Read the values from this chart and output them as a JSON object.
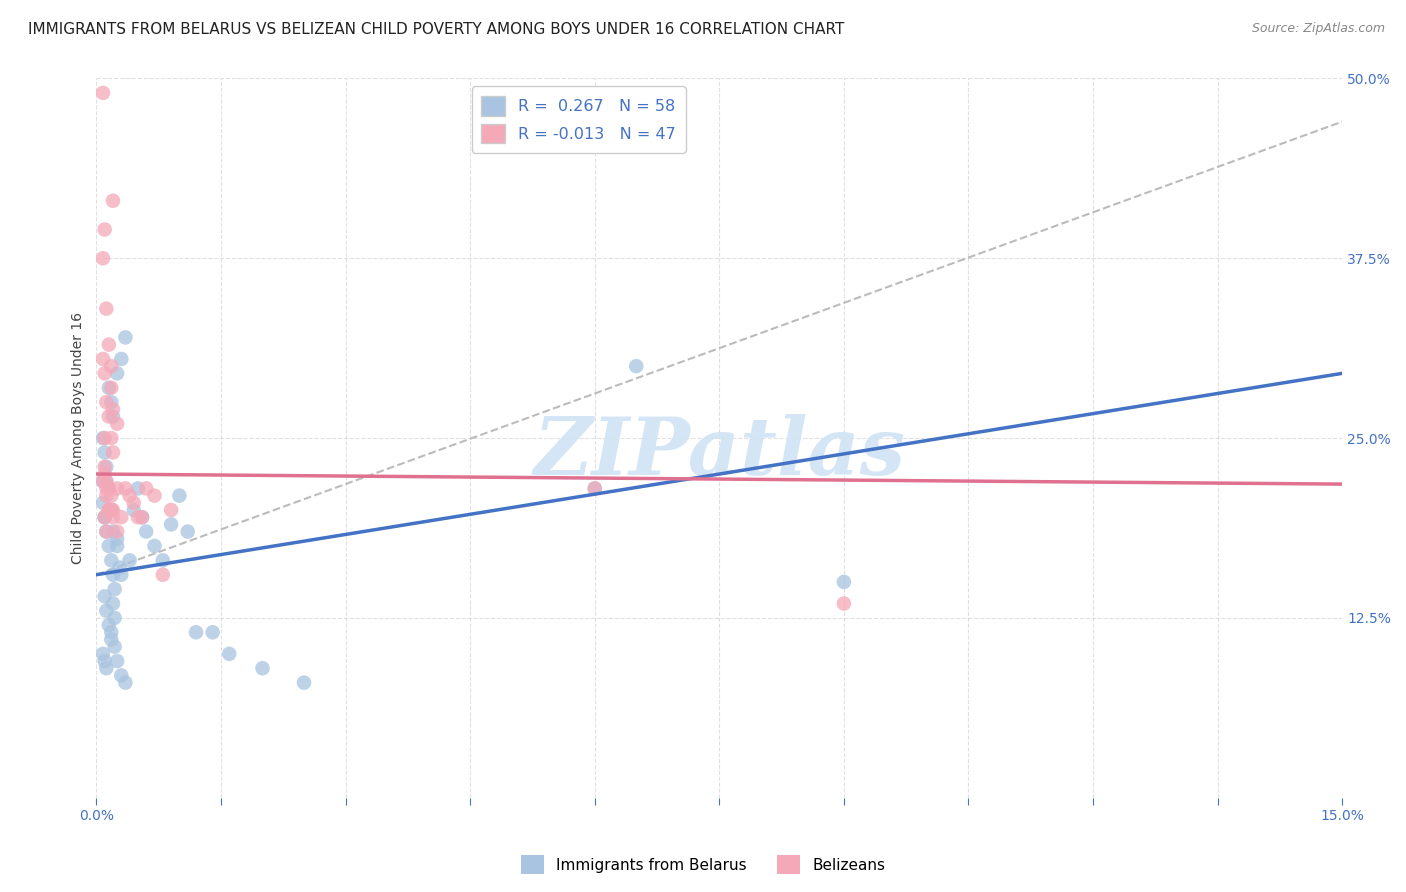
{
  "title": "IMMIGRANTS FROM BELARUS VS BELIZEAN CHILD POVERTY AMONG BOYS UNDER 16 CORRELATION CHART",
  "source": "Source: ZipAtlas.com",
  "ylabel_label": "Child Poverty Among Boys Under 16",
  "blue_line_color": "#4472c4",
  "pink_line_color": "#e07090",
  "blue_scatter_color": "#a8c4e0",
  "pink_scatter_color": "#f4a8b8",
  "dash_color": "#b0b0b0",
  "watermark_text": "ZIPatlas",
  "watermark_color": "#d0e4f4",
  "xlim": [
    0.0,
    0.15
  ],
  "ylim": [
    0.0,
    0.5
  ],
  "grid_color": "#cccccc",
  "background_color": "#ffffff",
  "title_fontsize": 11,
  "axis_label_fontsize": 10,
  "tick_fontsize": 10,
  "blue_line_x0": 0.0,
  "blue_line_y0": 0.155,
  "blue_line_x1": 0.15,
  "blue_line_y1": 0.295,
  "pink_line_x0": 0.0,
  "pink_line_y0": 0.225,
  "pink_line_x1": 0.15,
  "pink_line_y1": 0.218,
  "dash_line_x0": 0.0,
  "dash_line_y0": 0.155,
  "dash_line_x1": 0.15,
  "dash_line_y1": 0.47,
  "blue_pts_x": [
    0.0008,
    0.001,
    0.0012,
    0.0015,
    0.0018,
    0.002,
    0.0022,
    0.0025,
    0.0028,
    0.003,
    0.001,
    0.0012,
    0.0015,
    0.0018,
    0.002,
    0.0022,
    0.0008,
    0.001,
    0.0012,
    0.0015,
    0.0018,
    0.002,
    0.0025,
    0.003,
    0.0035,
    0.0008,
    0.001,
    0.0012,
    0.0015,
    0.0018,
    0.002,
    0.0025,
    0.0008,
    0.001,
    0.0012,
    0.0018,
    0.0022,
    0.0025,
    0.003,
    0.0035,
    0.004,
    0.0045,
    0.005,
    0.0055,
    0.006,
    0.007,
    0.008,
    0.009,
    0.01,
    0.011,
    0.012,
    0.014,
    0.016,
    0.02,
    0.025,
    0.06,
    0.065,
    0.09
  ],
  "blue_pts_y": [
    0.22,
    0.195,
    0.185,
    0.175,
    0.165,
    0.155,
    0.145,
    0.175,
    0.16,
    0.155,
    0.14,
    0.13,
    0.12,
    0.11,
    0.135,
    0.125,
    0.25,
    0.24,
    0.23,
    0.285,
    0.275,
    0.265,
    0.295,
    0.305,
    0.32,
    0.205,
    0.195,
    0.22,
    0.215,
    0.2,
    0.185,
    0.18,
    0.1,
    0.095,
    0.09,
    0.115,
    0.105,
    0.095,
    0.085,
    0.08,
    0.165,
    0.2,
    0.215,
    0.195,
    0.185,
    0.175,
    0.165,
    0.19,
    0.21,
    0.185,
    0.115,
    0.115,
    0.1,
    0.09,
    0.08,
    0.215,
    0.3,
    0.15
  ],
  "pink_pts_x": [
    0.0008,
    0.001,
    0.0012,
    0.0015,
    0.0018,
    0.002,
    0.0025,
    0.0008,
    0.001,
    0.0012,
    0.0015,
    0.0018,
    0.002,
    0.0008,
    0.001,
    0.0012,
    0.0015,
    0.0018,
    0.002,
    0.0025,
    0.001,
    0.0012,
    0.0015,
    0.0018,
    0.001,
    0.0012,
    0.0015,
    0.002,
    0.0025,
    0.003,
    0.0035,
    0.004,
    0.0045,
    0.005,
    0.0055,
    0.006,
    0.007,
    0.008,
    0.009,
    0.001,
    0.0012,
    0.0015,
    0.0018,
    0.002,
    0.0008,
    0.06,
    0.09
  ],
  "pink_pts_y": [
    0.22,
    0.25,
    0.21,
    0.2,
    0.285,
    0.27,
    0.26,
    0.375,
    0.395,
    0.34,
    0.315,
    0.3,
    0.415,
    0.305,
    0.295,
    0.275,
    0.265,
    0.25,
    0.24,
    0.215,
    0.23,
    0.22,
    0.215,
    0.2,
    0.195,
    0.185,
    0.2,
    0.2,
    0.185,
    0.195,
    0.215,
    0.21,
    0.205,
    0.195,
    0.195,
    0.215,
    0.21,
    0.155,
    0.2,
    0.225,
    0.215,
    0.2,
    0.21,
    0.195,
    0.49,
    0.215,
    0.135
  ],
  "legend_r_blue": "0.267",
  "legend_n_blue": "58",
  "legend_r_pink": "-0.013",
  "legend_n_pink": "47"
}
